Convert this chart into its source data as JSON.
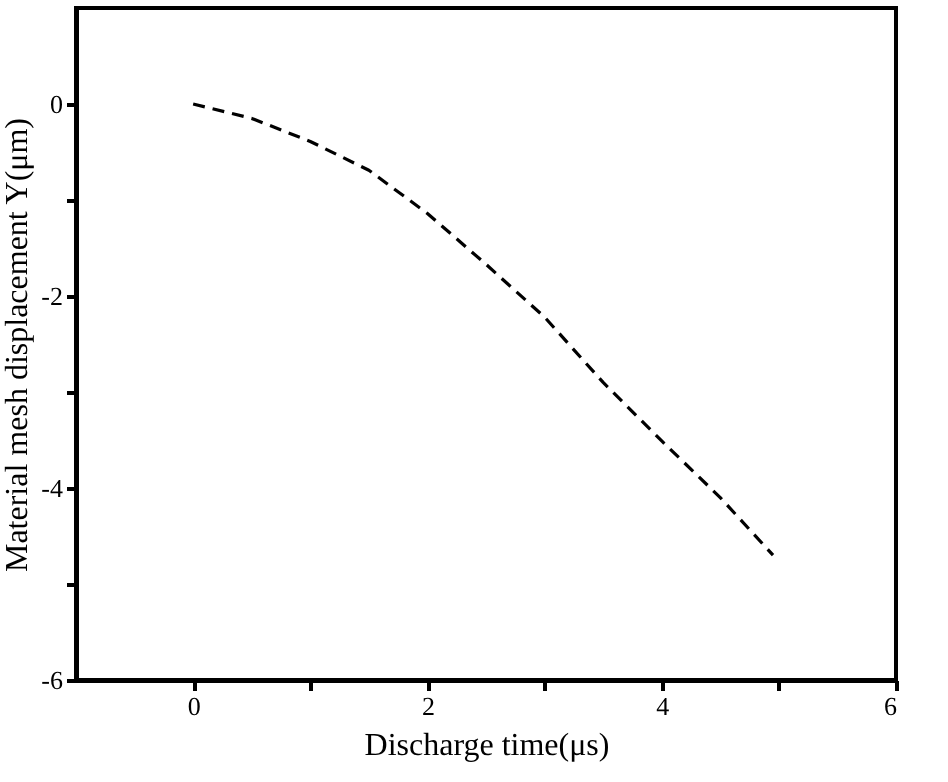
{
  "chart_data": {
    "type": "line",
    "xlabel": "Discharge time(μs)",
    "ylabel": "Material mesh displacement Y(μm)",
    "x": [
      0,
      0.5,
      1,
      1.5,
      2,
      2.5,
      3,
      3.5,
      4,
      4.5,
      4.95
    ],
    "series": [
      {
        "color": "#000000",
        "values": [
          0,
          -0.15,
          -0.39,
          -0.69,
          -1.14,
          -1.67,
          -2.22,
          -2.9,
          -3.51,
          -4.1,
          -4.7
        ]
      }
    ],
    "xlim": [
      -1,
      6
    ],
    "ylim": [
      -6,
      1
    ],
    "xticks": [
      0,
      {
        "value": 1,
        "label": null
      },
      2,
      {
        "value": 3,
        "label": null
      },
      4,
      {
        "value": 5,
        "label": null
      },
      6
    ],
    "yticks": [
      -6,
      {
        "value": -5,
        "label": null
      },
      -4,
      {
        "value": -3,
        "label": null
      },
      -2,
      {
        "value": -1,
        "label": null
      },
      0
    ],
    "line_style": "dashed",
    "marker": "none",
    "grid": false
  }
}
